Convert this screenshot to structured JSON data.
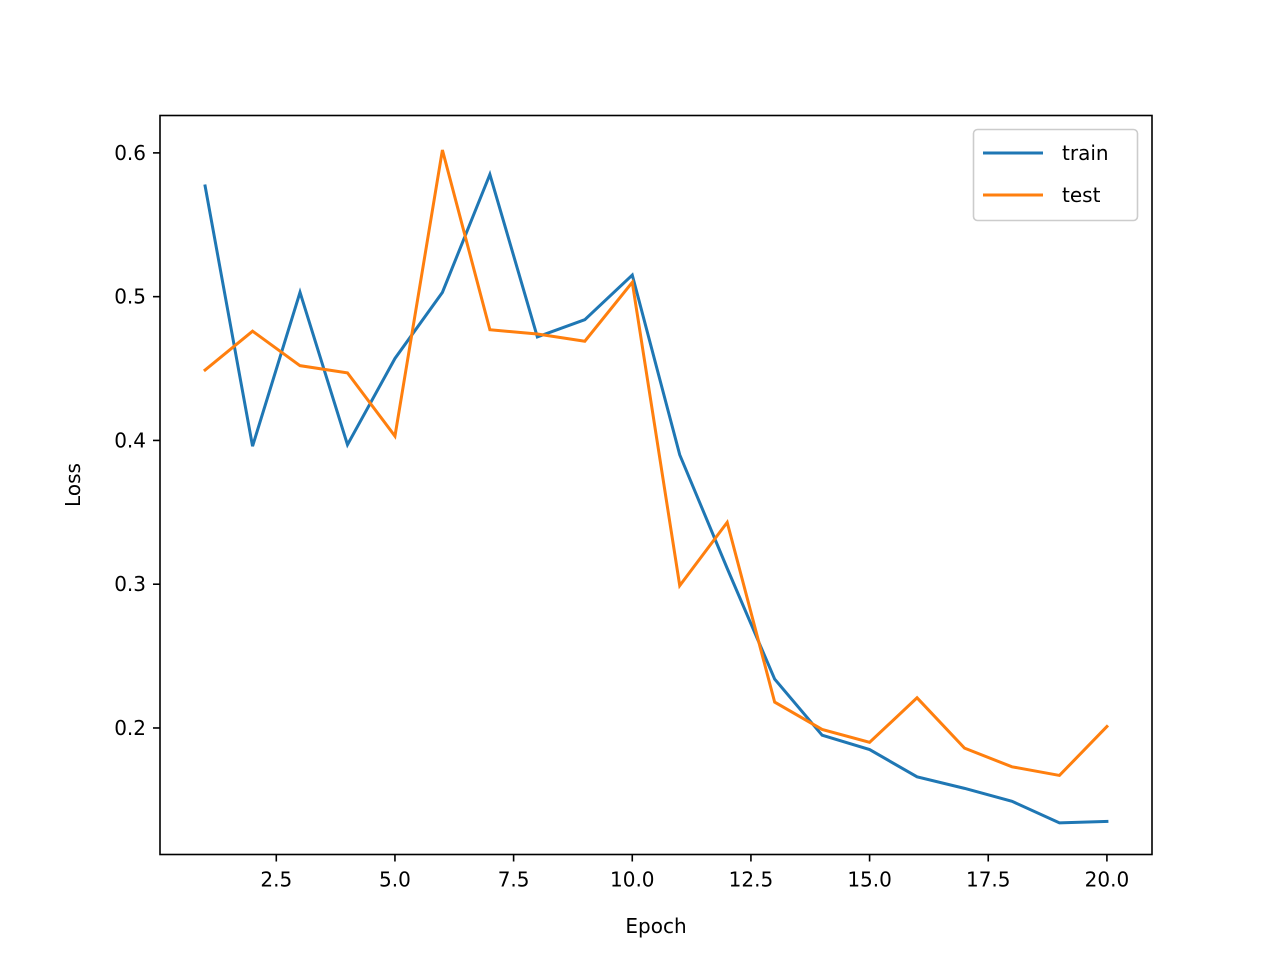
{
  "chart_data": {
    "type": "line",
    "title": "",
    "xlabel": "Epoch",
    "ylabel": "Loss",
    "xlim": [
      0.05,
      20.95
    ],
    "ylim": [
      0.112,
      0.626
    ],
    "x_ticks": [
      2.5,
      5.0,
      7.5,
      10.0,
      12.5,
      15.0,
      17.5,
      20.0
    ],
    "x_tick_labels": [
      "2.5",
      "5.0",
      "7.5",
      "10.0",
      "12.5",
      "15.0",
      "17.5",
      "20.0"
    ],
    "y_ticks": [
      0.2,
      0.3,
      0.4,
      0.5,
      0.6
    ],
    "y_tick_labels": [
      "0.2",
      "0.3",
      "0.4",
      "0.5",
      "0.6"
    ],
    "grid": false,
    "legend_position": "top-right",
    "x": [
      1,
      2,
      3,
      4,
      5,
      6,
      7,
      8,
      9,
      10,
      11,
      12,
      13,
      14,
      15,
      16,
      17,
      18,
      19,
      20
    ],
    "series": [
      {
        "name": "train",
        "color": "#1f77b4",
        "values": [
          0.577,
          0.396,
          0.503,
          0.397,
          0.457,
          0.503,
          0.585,
          0.472,
          0.484,
          0.515,
          0.39,
          0.311,
          0.234,
          0.195,
          0.185,
          0.166,
          0.158,
          0.149,
          0.134,
          0.135
        ]
      },
      {
        "name": "test",
        "color": "#ff7f0e",
        "values": [
          0.449,
          0.476,
          0.452,
          0.447,
          0.403,
          0.602,
          0.477,
          0.474,
          0.469,
          0.51,
          0.299,
          0.343,
          0.218,
          0.199,
          0.19,
          0.221,
          0.186,
          0.173,
          0.167,
          0.201
        ]
      }
    ]
  }
}
